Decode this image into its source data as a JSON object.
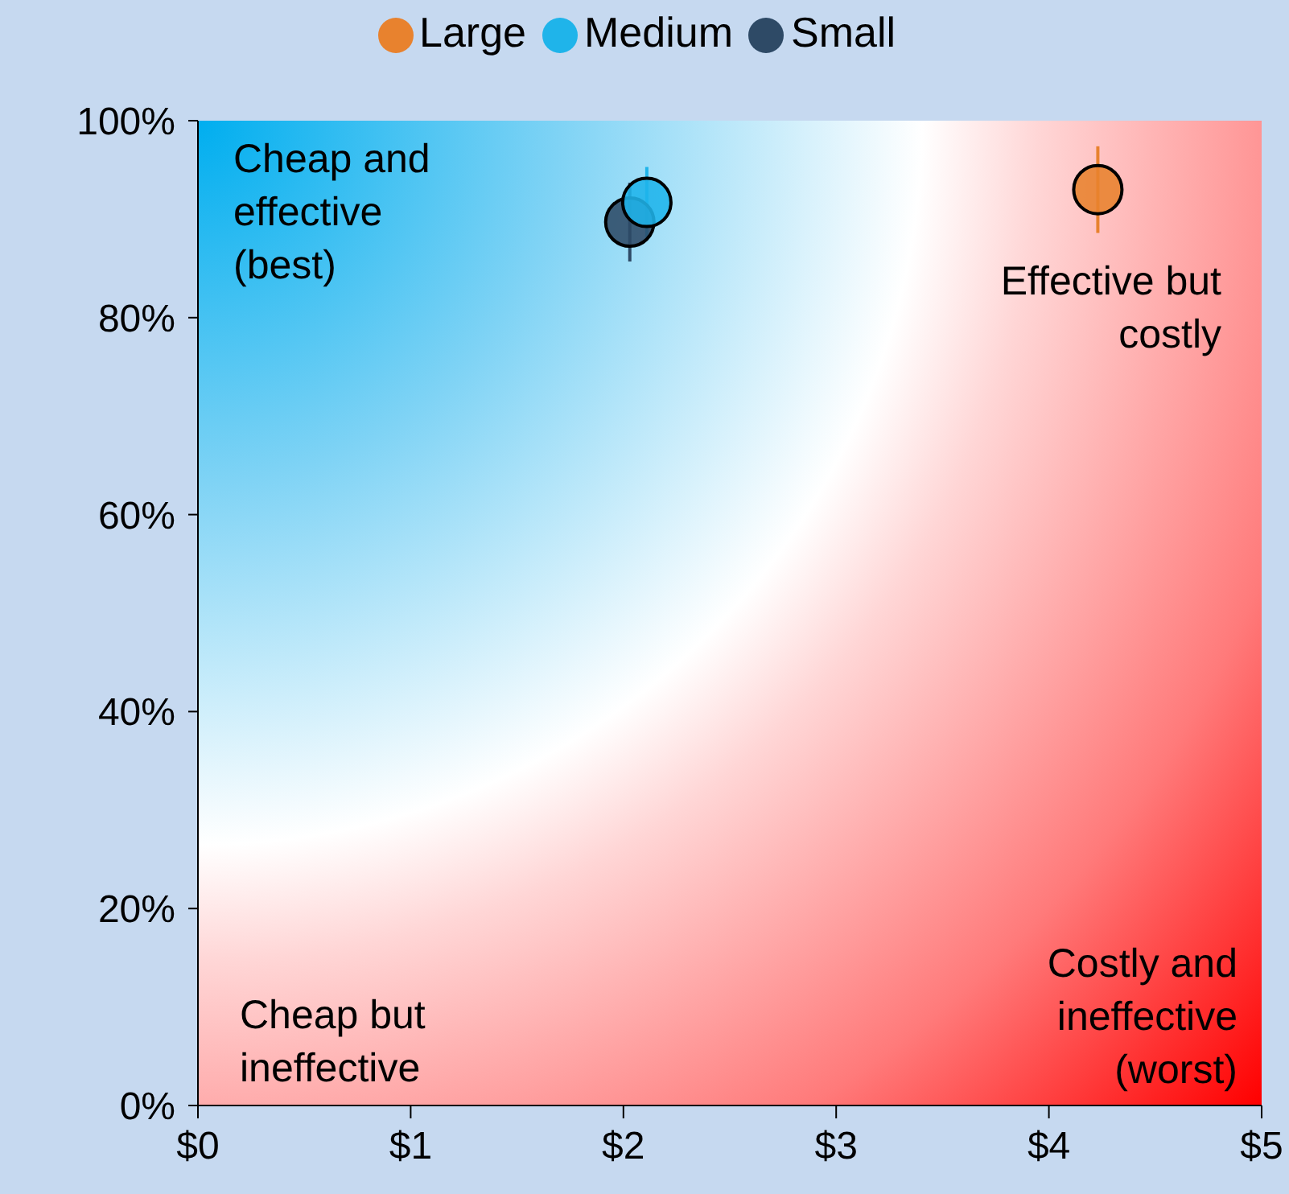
{
  "chart_data": {
    "type": "scatter",
    "series": [
      {
        "name": "Small",
        "color": "#2e4a66",
        "x": [
          2.03
        ],
        "values": [
          89.7
        ],
        "errors": [
          4
        ]
      },
      {
        "name": "Medium",
        "color": "#1fb4ea",
        "x": [
          2.11
        ],
        "values": [
          91.7
        ],
        "errors": [
          3.6
        ]
      },
      {
        "name": "Large",
        "color": "#e8822e",
        "x": [
          4.23
        ],
        "values": [
          93
        ],
        "errors": [
          4.4
        ]
      }
    ],
    "xlim": [
      0,
      5
    ],
    "xticks": [
      {
        "value": 0,
        "label": "$0"
      },
      {
        "value": 1,
        "label": "$1"
      },
      {
        "value": 2,
        "label": "$2"
      },
      {
        "value": 3,
        "label": "$3"
      },
      {
        "value": 4,
        "label": "$4"
      },
      {
        "value": 5,
        "label": "$5"
      }
    ],
    "ylim": [
      0,
      100
    ],
    "yticks": [
      {
        "value": 0,
        "label": "0%"
      },
      {
        "value": 20,
        "label": "20%"
      },
      {
        "value": 40,
        "label": "40%"
      },
      {
        "value": 60,
        "label": "60%"
      },
      {
        "value": 80,
        "label": "80%"
      },
      {
        "value": 100,
        "label": "100%"
      }
    ],
    "annotations": [
      "Cheap and effective (best)",
      "Effective but costly",
      "Cheap but ineffective",
      "Costly and ineffective (worst)"
    ],
    "legend": "top",
    "marker": "circle",
    "grid": false
  }
}
